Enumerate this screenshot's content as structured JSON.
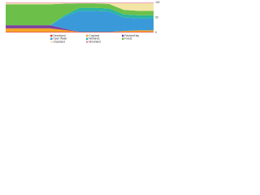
{
  "chart_data": {
    "type": "stacked-area",
    "x": [
      0,
      1,
      2,
      3,
      4,
      5,
      6,
      7,
      8,
      9,
      10
    ],
    "xlim": [
      0,
      10
    ],
    "ylim": [
      0,
      100
    ],
    "yticks": [
      0,
      50,
      100
    ],
    "legend": "bottom-right",
    "series": [
      {
        "name": "Developed",
        "color": "#e0352b",
        "values": [
          2,
          2,
          2,
          2,
          2,
          2,
          2,
          2,
          2,
          2,
          2
        ]
      },
      {
        "name": "Cropland",
        "color": "#f4a52a",
        "values": [
          12,
          12,
          12,
          12,
          6,
          0,
          0,
          0,
          3,
          5,
          5
        ]
      },
      {
        "name": "Pasture/Hay",
        "color": "#7b3f9e",
        "values": [
          10,
          10,
          10,
          10,
          5,
          0,
          0,
          0,
          0,
          0,
          0
        ]
      },
      {
        "name": "Open Water",
        "color": "#3a9ad9",
        "values": [
          0,
          0,
          0,
          0,
          40,
          70,
          70,
          68,
          45,
          40,
          40
        ]
      },
      {
        "name": "Wetlands",
        "color": "#2bb59f",
        "values": [
          0,
          0,
          0,
          0,
          5,
          10,
          10,
          10,
          10,
          10,
          10
        ]
      },
      {
        "name": "Forest",
        "color": "#6cc04a",
        "values": [
          70,
          70,
          70,
          70,
          38,
          15,
          15,
          15,
          15,
          15,
          15
        ]
      },
      {
        "name": "Grassland",
        "color": "#f3e5a6",
        "values": [
          4,
          4,
          4,
          4,
          2,
          1,
          1,
          3,
          23,
          26,
          26
        ]
      },
      {
        "name": "Shrubland",
        "color": "#e58bb8",
        "values": [
          2,
          2,
          2,
          2,
          2,
          2,
          2,
          2,
          2,
          2,
          2
        ]
      }
    ]
  }
}
